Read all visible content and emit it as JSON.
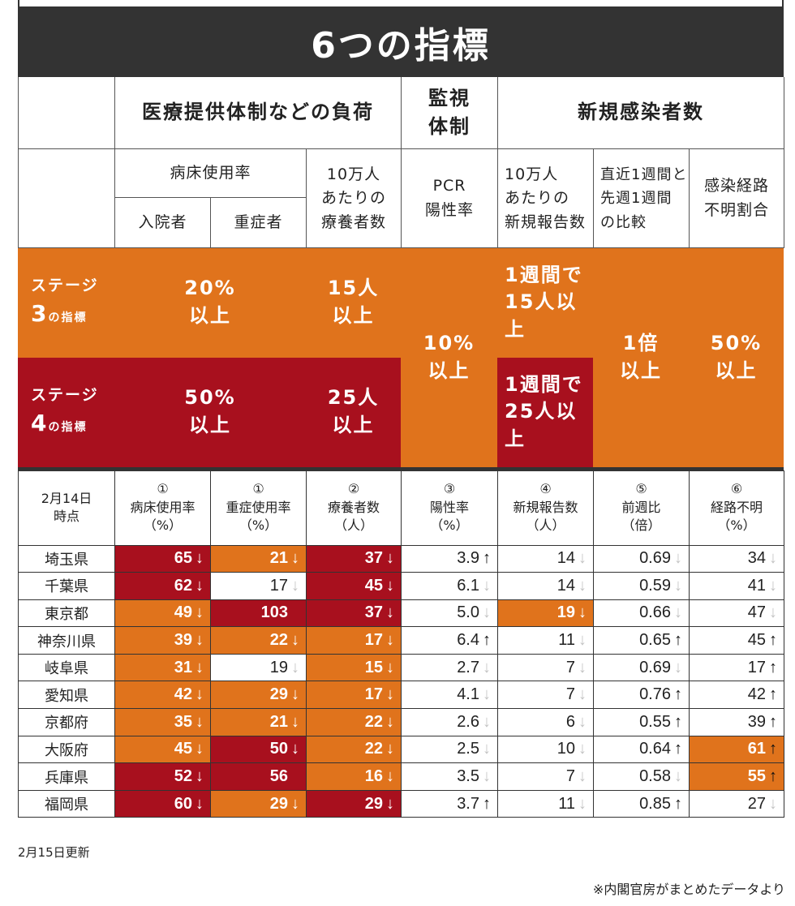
{
  "title": "6つの指標",
  "header": {
    "group_medical": "医療提供体制などの負荷",
    "group_monitor_1": "監視",
    "group_monitor_2": "体制",
    "group_new": "新規感染者数",
    "bed_usage": "病床使用率",
    "inpatients": "入院者",
    "severe": "重症者",
    "recuperating_1": "10万人",
    "recuperating_2": "あたりの",
    "recuperating_3": "療養者数",
    "pcr_1": "PCR",
    "pcr_2": "陽性率",
    "newrep_1": "10万人",
    "newrep_2": "あたりの",
    "newrep_3": "新規報告数",
    "weekly_1": "直近1週間と",
    "weekly_2": "先週1週間",
    "weekly_3": "の比較",
    "unknown_1": "感染経路",
    "unknown_2": "不明割合"
  },
  "stages": {
    "stage3_label_1": "ステージ",
    "stage3_num": "3",
    "stage3_suffix": "の指標",
    "stage4_label_1": "ステージ",
    "stage4_num": "4",
    "stage4_suffix": "の指標",
    "s3_bed_1": "20%",
    "s3_bed_2": "以上",
    "s3_rec_1": "15人",
    "s3_rec_2": "以上",
    "s4_bed_1": "50%",
    "s4_bed_2": "以上",
    "s4_rec_1": "25人",
    "s4_rec_2": "以上",
    "pcr_1": "10%",
    "pcr_2": "以上",
    "s3_newrep_1": "1週間で",
    "s3_newrep_2": "15人以上",
    "s4_newrep_1": "1週間で",
    "s4_newrep_2": "25人以上",
    "weekly_1": "1倍",
    "weekly_2": "以上",
    "unknown_1": "50%",
    "unknown_2": "以上"
  },
  "columns": {
    "date_1": "2月14日",
    "date_2": "時点",
    "c1": [
      "①",
      "病床使用率",
      "（%）"
    ],
    "c2": [
      "①",
      "重症使用率",
      "（%）"
    ],
    "c3": [
      "②",
      "療養者数",
      "（人）"
    ],
    "c4": [
      "③",
      "陽性率",
      "（%）"
    ],
    "c5": [
      "④",
      "新規報告数",
      "（人）"
    ],
    "c6": [
      "⑤",
      "前週比",
      "（倍）"
    ],
    "c7": [
      "⑥",
      "経路不明",
      "（%）"
    ]
  },
  "colors": {
    "stage3": "#e0731c",
    "stage4": "#a8101e",
    "banner": "#333333"
  },
  "rows": [
    {
      "pref": "埼玉県",
      "cells": [
        [
          "65",
          "down",
          "red"
        ],
        [
          "21",
          "down",
          "org"
        ],
        [
          "37",
          "down",
          "red"
        ],
        [
          "3.9",
          "up",
          ""
        ],
        [
          "14",
          "down",
          ""
        ],
        [
          "0.69",
          "down",
          ""
        ],
        [
          "34",
          "down",
          ""
        ]
      ]
    },
    {
      "pref": "千葉県",
      "cells": [
        [
          "62",
          "down",
          "red"
        ],
        [
          "17",
          "down",
          ""
        ],
        [
          "45",
          "down",
          "red"
        ],
        [
          "6.1",
          "down",
          ""
        ],
        [
          "14",
          "down",
          ""
        ],
        [
          "0.59",
          "down",
          ""
        ],
        [
          "41",
          "down",
          ""
        ]
      ]
    },
    {
      "pref": "東京都",
      "cells": [
        [
          "49",
          "down",
          "org"
        ],
        [
          "103",
          "",
          "red"
        ],
        [
          "37",
          "down",
          "red"
        ],
        [
          "5.0",
          "down",
          ""
        ],
        [
          "19",
          "down",
          "org"
        ],
        [
          "0.66",
          "down",
          ""
        ],
        [
          "47",
          "down",
          ""
        ]
      ]
    },
    {
      "pref": "神奈川県",
      "cells": [
        [
          "39",
          "down",
          "org"
        ],
        [
          "22",
          "down",
          "org"
        ],
        [
          "17",
          "down",
          "org"
        ],
        [
          "6.4",
          "up",
          ""
        ],
        [
          "11",
          "down",
          ""
        ],
        [
          "0.65",
          "up",
          ""
        ],
        [
          "45",
          "up",
          ""
        ]
      ]
    },
    {
      "pref": "岐阜県",
      "cells": [
        [
          "31",
          "down",
          "org"
        ],
        [
          "19",
          "down",
          ""
        ],
        [
          "15",
          "down",
          "org"
        ],
        [
          "2.7",
          "down",
          ""
        ],
        [
          "7",
          "down",
          ""
        ],
        [
          "0.69",
          "down",
          ""
        ],
        [
          "17",
          "up",
          ""
        ]
      ]
    },
    {
      "pref": "愛知県",
      "cells": [
        [
          "42",
          "down",
          "org"
        ],
        [
          "29",
          "down",
          "org"
        ],
        [
          "17",
          "down",
          "org"
        ],
        [
          "4.1",
          "down",
          ""
        ],
        [
          "7",
          "down",
          ""
        ],
        [
          "0.76",
          "up",
          ""
        ],
        [
          "42",
          "up",
          ""
        ]
      ]
    },
    {
      "pref": "京都府",
      "cells": [
        [
          "35",
          "down",
          "org"
        ],
        [
          "21",
          "down",
          "org"
        ],
        [
          "22",
          "down",
          "org"
        ],
        [
          "2.6",
          "down",
          ""
        ],
        [
          "6",
          "down",
          ""
        ],
        [
          "0.55",
          "up",
          ""
        ],
        [
          "39",
          "up",
          ""
        ]
      ]
    },
    {
      "pref": "大阪府",
      "cells": [
        [
          "45",
          "down",
          "org"
        ],
        [
          "50",
          "down",
          "red"
        ],
        [
          "22",
          "down",
          "org"
        ],
        [
          "2.5",
          "down",
          ""
        ],
        [
          "10",
          "down",
          ""
        ],
        [
          "0.64",
          "up",
          ""
        ],
        [
          "61",
          "up",
          "org"
        ]
      ]
    },
    {
      "pref": "兵庫県",
      "cells": [
        [
          "52",
          "down",
          "red"
        ],
        [
          "56",
          "",
          "red"
        ],
        [
          "16",
          "down",
          "org"
        ],
        [
          "3.5",
          "down",
          ""
        ],
        [
          "7",
          "down",
          ""
        ],
        [
          "0.58",
          "down",
          ""
        ],
        [
          "55",
          "up",
          "org"
        ]
      ]
    },
    {
      "pref": "福岡県",
      "cells": [
        [
          "60",
          "down",
          "red"
        ],
        [
          "29",
          "down",
          "org"
        ],
        [
          "29",
          "down",
          "red"
        ],
        [
          "3.7",
          "up",
          ""
        ],
        [
          "11",
          "down",
          ""
        ],
        [
          "0.85",
          "up",
          ""
        ],
        [
          "27",
          "down",
          ""
        ]
      ]
    }
  ],
  "footer": {
    "updated": "2月15日更新",
    "source": "※内閣官房がまとめたデータより"
  }
}
